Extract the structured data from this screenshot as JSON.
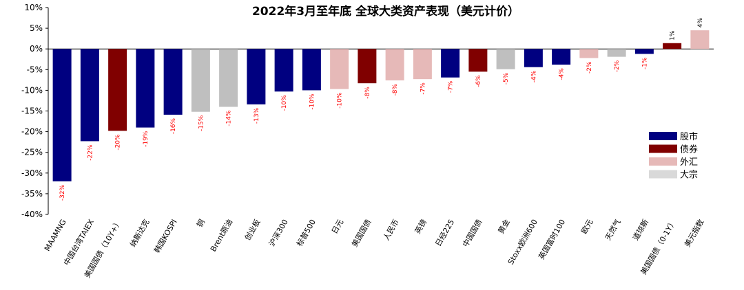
{
  "chart_data": {
    "type": "bar",
    "title": "2022年3月至年底 全球大类资产表现（美元计价）",
    "ylim": [
      -40,
      10
    ],
    "yticks": [
      10,
      5,
      0,
      -5,
      -10,
      -15,
      -20,
      -25,
      -30,
      -35,
      -40
    ],
    "ytick_labels": [
      "10%",
      "5%",
      "0%",
      "-5%",
      "-10%",
      "-15%",
      "-20%",
      "-25%",
      "-30%",
      "-35%",
      "-40%"
    ],
    "categories": [
      "MAAMNG",
      "中国台湾TAIEX",
      "美国国债（10Y+）",
      "纳斯达克",
      "韩国KOSPI",
      "铜",
      "Brent原油",
      "创业板",
      "沪深300",
      "标普500",
      "日元",
      "美国国债",
      "人民币",
      "英镑",
      "日经225",
      "中国国债",
      "黄金",
      "Stoxx欧洲600",
      "英国富时100",
      "欧元",
      "天然气",
      "道琼斯",
      "美国国债（0-1Y）",
      "美元指数"
    ],
    "values": [
      -32,
      -22.3,
      -19.8,
      -19,
      -15.9,
      -15.2,
      -14,
      -13.4,
      -10.3,
      -10,
      -9.7,
      -8.3,
      -7.6,
      -7.3,
      -6.9,
      -5.5,
      -4.9,
      -4.4,
      -3.8,
      -2.2,
      -1.9,
      -1.2,
      1.4,
      4.5
    ],
    "data_labels": [
      "-32%",
      "-22%",
      "-20%",
      "-19%",
      "-16%",
      "-15%",
      "-14%",
      "-13%",
      "-10%",
      "-10%",
      "-10%",
      "-8%",
      "-8%",
      "-7%",
      "-7%",
      "-6%",
      "-5%",
      "-4%",
      "-4%",
      "-2%",
      "-2%",
      "-1%",
      "1%",
      "4%"
    ],
    "groups": [
      "股市",
      "股市",
      "债券",
      "股市",
      "股市",
      "大宗",
      "大宗",
      "股市",
      "股市",
      "股市",
      "外汇",
      "债券",
      "外汇",
      "外汇",
      "股市",
      "债券",
      "大宗",
      "股市",
      "股市",
      "外汇",
      "大宗",
      "股市",
      "债券",
      "外汇"
    ],
    "legend": {
      "placement": "right",
      "items": [
        {
          "name": "股市",
          "color": "#000080"
        },
        {
          "name": "债券",
          "color": "#800000"
        },
        {
          "name": "外汇",
          "color": "#E6B9B8"
        },
        {
          "name": "大宗",
          "color": "#D9D9D9"
        }
      ]
    },
    "colors": {
      "股市": "#000080",
      "债券": "#800000",
      "外汇": "#E6B9B8",
      "大宗": "#BFBFBF",
      "negative_label": "#FF0000",
      "positive_label": "#000000"
    },
    "grid": false
  }
}
